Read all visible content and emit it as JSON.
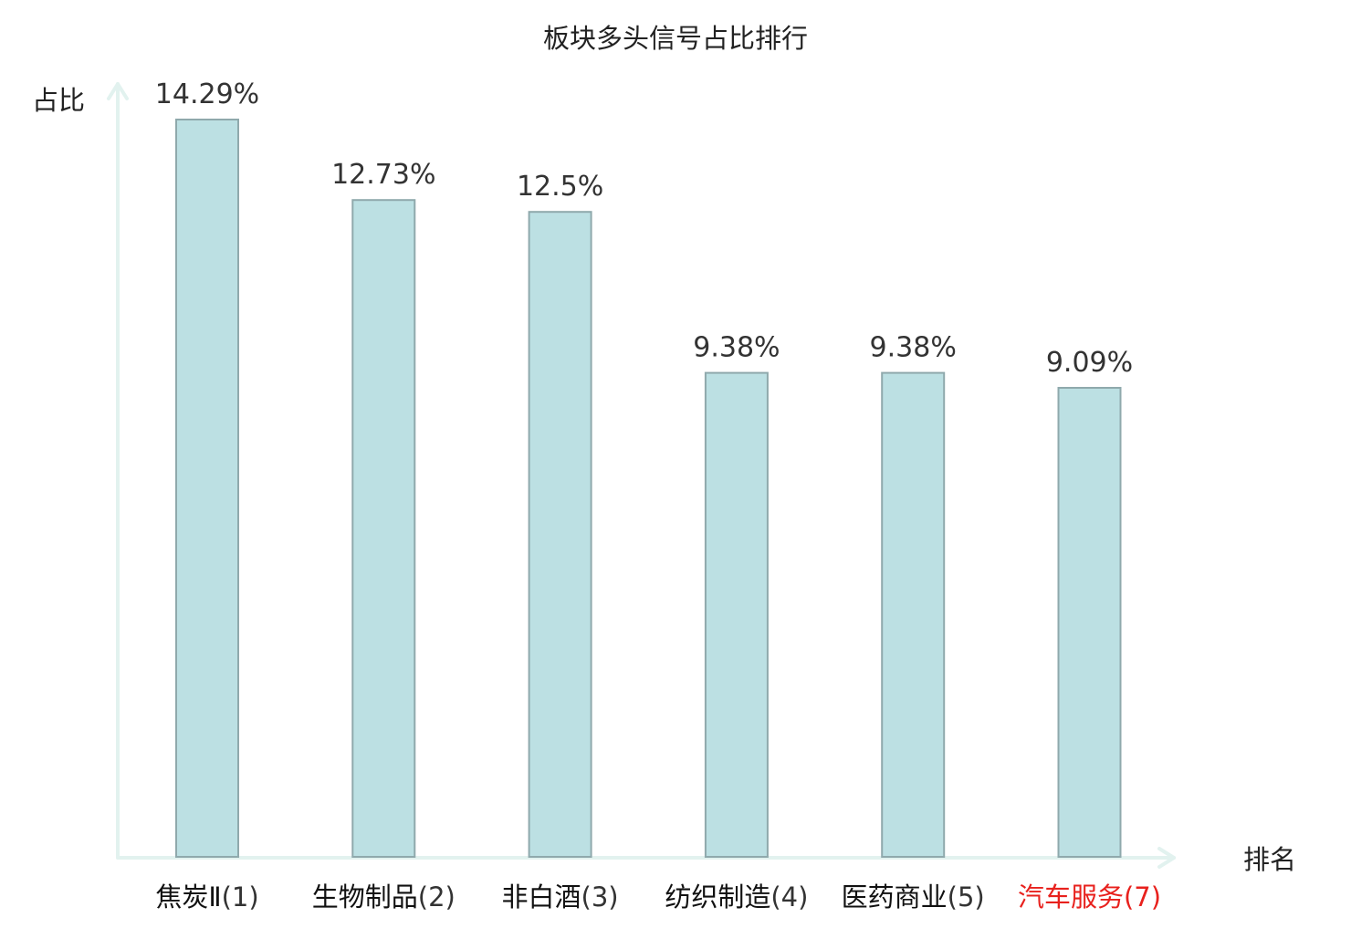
{
  "chart_data": {
    "type": "bar",
    "title": "板块多头信号占比排行",
    "ylabel": "占比",
    "xlabel": "排名",
    "ylim": [
      0,
      14.29
    ],
    "grid": false,
    "legend": "none",
    "categories": [
      {
        "name": "焦炭Ⅱ",
        "rank": "(1)",
        "highlight": false
      },
      {
        "name": "生物制品",
        "rank": "(2)",
        "highlight": false
      },
      {
        "name": "非白酒",
        "rank": "(3)",
        "highlight": false
      },
      {
        "name": "纺织制造",
        "rank": "(4)",
        "highlight": false
      },
      {
        "name": "医药商业",
        "rank": "(5)",
        "highlight": false
      },
      {
        "name": "汽车服务",
        "rank": "(7)",
        "highlight": true
      }
    ],
    "values": [
      14.29,
      12.73,
      12.5,
      9.38,
      9.38,
      9.09
    ],
    "value_labels": [
      "14.29%",
      "12.73%",
      "12.5%",
      "9.38%",
      "9.38%",
      "9.09%"
    ],
    "colors": {
      "bar_fill": "#bce0e3",
      "bar_stroke": "#8fa9ac",
      "axis": "#e2f2ef",
      "label_text": "#111111",
      "rank_text": "#333333",
      "highlight_text": "#e8211d"
    }
  }
}
